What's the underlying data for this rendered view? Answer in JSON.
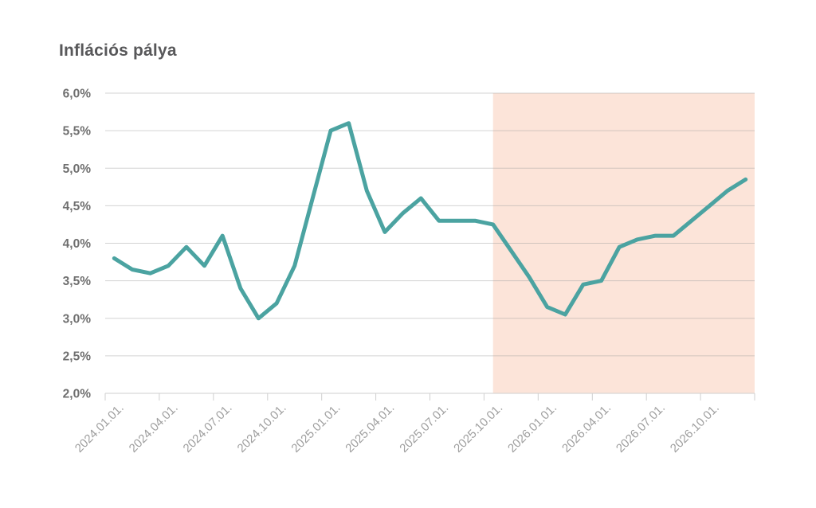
{
  "chart_data": {
    "type": "line",
    "title": "Inflációs pálya",
    "categories": [
      "2024.01.01.",
      "2024.02.01.",
      "2024.03.01.",
      "2024.04.01.",
      "2024.05.01.",
      "2024.06.01.",
      "2024.07.01.",
      "2024.08.01.",
      "2024.09.01.",
      "2024.10.01.",
      "2024.11.01.",
      "2024.12.01.",
      "2025.01.01.",
      "2025.02.01.",
      "2025.03.01.",
      "2025.04.01.",
      "2025.05.01.",
      "2025.06.01.",
      "2025.07.01.",
      "2025.08.01.",
      "2025.09.01.",
      "2025.10.01.",
      "2025.11.01.",
      "2025.12.01.",
      "2026.01.01.",
      "2026.02.01.",
      "2026.03.01.",
      "2026.04.01.",
      "2026.05.01.",
      "2026.06.01.",
      "2026.07.01.",
      "2026.08.01.",
      "2026.09.01.",
      "2026.10.01.",
      "2026.11.01.",
      "2026.12.01."
    ],
    "series": [
      {
        "name": "Inflációs pálya",
        "color": "#4ba3a1",
        "values": [
          3.8,
          3.65,
          3.6,
          3.7,
          3.95,
          3.7,
          4.1,
          3.4,
          3.0,
          3.2,
          3.7,
          4.6,
          5.5,
          5.6,
          4.7,
          4.15,
          4.4,
          4.6,
          4.3,
          4.3,
          4.3,
          4.25,
          3.9,
          3.55,
          3.15,
          3.05,
          3.45,
          3.5,
          3.95,
          4.05,
          4.1,
          4.1,
          4.3,
          4.5,
          4.7,
          4.85
        ]
      }
    ],
    "ylim": [
      2.0,
      6.0
    ],
    "y_tick_step": 0.5,
    "y_tick_labels": [
      "2,0%",
      "2,5%",
      "3,0%",
      "3,5%",
      "4,0%",
      "4,5%",
      "5,0%",
      "5,5%",
      "6,0%"
    ],
    "x_tick_labels": [
      "2024.01.01.",
      "2024.04.01.",
      "2024.07.01.",
      "2024.10.01.",
      "2025.01.01.",
      "2025.04.01.",
      "2025.07.01.",
      "2025.10.01.",
      "2026.01.01.",
      "2026.04.01.",
      "2026.07.01.",
      "2026.10.01."
    ],
    "x_tick_every": 3,
    "grid": "horizontal",
    "legend": "none",
    "forecast_band": {
      "start_category": "2025.10.01.",
      "start_index": 21,
      "color": "#fce4d9"
    },
    "colors": {
      "line": "#4ba3a1",
      "band": "#fce4d9",
      "grid": "rgba(158,158,158,0.45)",
      "axis": "#cfcfcf",
      "title": "#58585a",
      "y_labels": "#6f6f6f",
      "x_labels": "#9e9e9e",
      "background": "#ffffff"
    }
  }
}
